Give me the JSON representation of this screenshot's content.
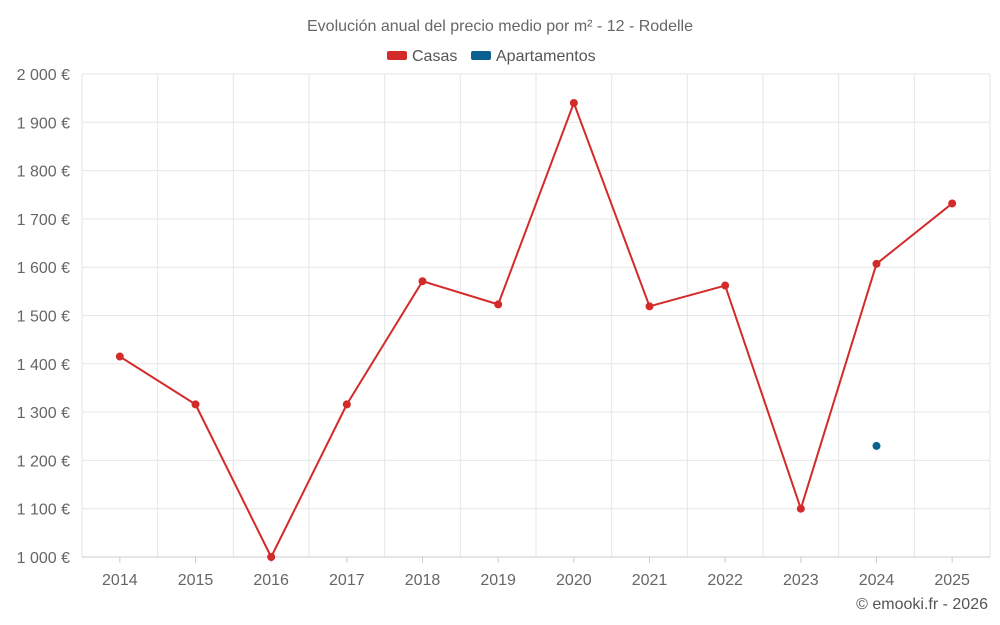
{
  "chart_data": {
    "type": "line",
    "title": "Evolución anual del precio medio por m² - 12 - Rodelle",
    "categories": [
      "2014",
      "2015",
      "2016",
      "2017",
      "2018",
      "2019",
      "2020",
      "2021",
      "2022",
      "2023",
      "2024",
      "2025"
    ],
    "series": [
      {
        "name": "Casas",
        "color": "#d32a2a",
        "values": [
          1415,
          1316,
          1000,
          1316,
          1571,
          1523,
          1940,
          1519,
          1562,
          1100,
          1607,
          1732
        ]
      },
      {
        "name": "Apartamentos",
        "color": "#0d6190",
        "values": [
          null,
          null,
          null,
          null,
          null,
          null,
          null,
          null,
          null,
          null,
          1230,
          null
        ]
      }
    ],
    "ylim": [
      1000,
      2000
    ],
    "ytick_step": 100,
    "ytick_labels": [
      "1 000 €",
      "1 100 €",
      "1 200 €",
      "1 300 €",
      "1 400 €",
      "1 500 €",
      "1 600 €",
      "1 700 €",
      "1 800 €",
      "1 900 €",
      "2 000 €"
    ],
    "legend_position": "top-center",
    "grid": true,
    "credit": "© emooki.fr - 2026"
  }
}
